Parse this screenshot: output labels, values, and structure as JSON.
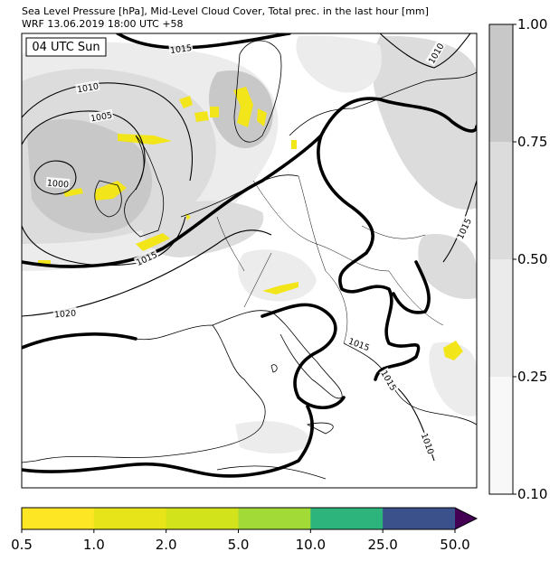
{
  "header": {
    "line1": "Sea Level Pressure [hPa], Mid-Level Cloud Cover, Total prec. in the last hour [mm]",
    "line2": "WRF 13.06.2019 18:00 UTC +58"
  },
  "time_label": "04 UTC Sun",
  "isobar_labels": [
    "1015",
    "1010",
    "1005",
    "1000",
    "1015",
    "1020",
    "1010",
    "1015",
    "1015",
    "1015",
    "1010"
  ],
  "cloud_colorbar": {
    "ticks": [
      "1.00",
      "0.75",
      "0.50",
      "0.25",
      "0.10"
    ]
  },
  "precip_colorbar": {
    "ticks": [
      "0.5",
      "1.0",
      "2.0",
      "5.0",
      "10.0",
      "25.0",
      "50.0"
    ]
  }
}
